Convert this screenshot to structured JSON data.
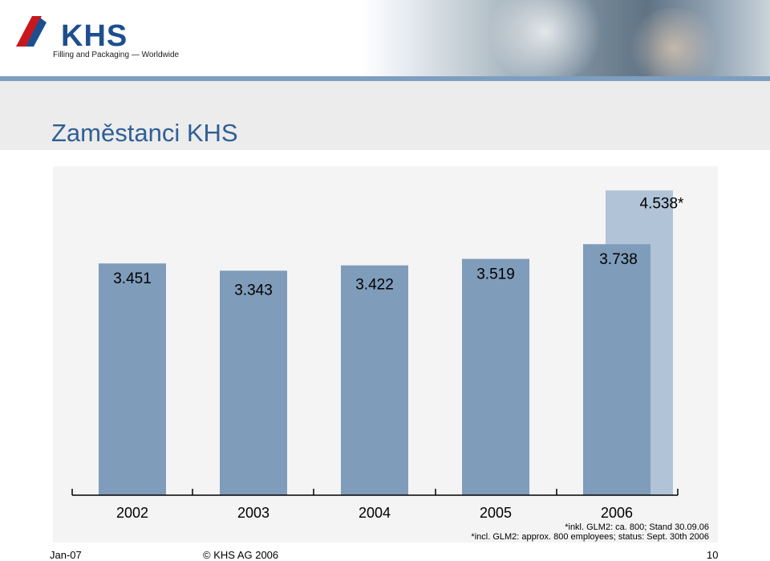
{
  "header": {
    "logo_text": "KHS",
    "logo_tagline": "Filling and Packaging — Worldwide"
  },
  "title": "Zaměstanci KHS",
  "chart_data": {
    "type": "bar",
    "title": "",
    "xlabel": "",
    "ylabel": "",
    "categories": [
      "2002",
      "2003",
      "2004",
      "2005",
      "2006"
    ],
    "series": [
      {
        "values": [
          3451,
          3343,
          3422,
          3519,
          3738
        ],
        "labels": [
          "3.451",
          "3.343",
          "3.422",
          "3.519",
          "3.738"
        ],
        "color": "#7f9cba"
      }
    ],
    "extra_bar": {
      "category": "2006",
      "value": 4538,
      "label": "4.538*",
      "color": "#b1c3d6"
    },
    "ylim": [
      0,
      4900
    ],
    "grid": false,
    "background": "#f4f4f4",
    "notes": [
      "*inkl. GLM2: ca. 800; Stand 30.09.06",
      "*incl. GLM2: approx. 800 employees; status: Sept. 30th 2006"
    ]
  },
  "footer": {
    "date": "Jan-07",
    "copyright": "© KHS AG 2006",
    "page": "10"
  }
}
